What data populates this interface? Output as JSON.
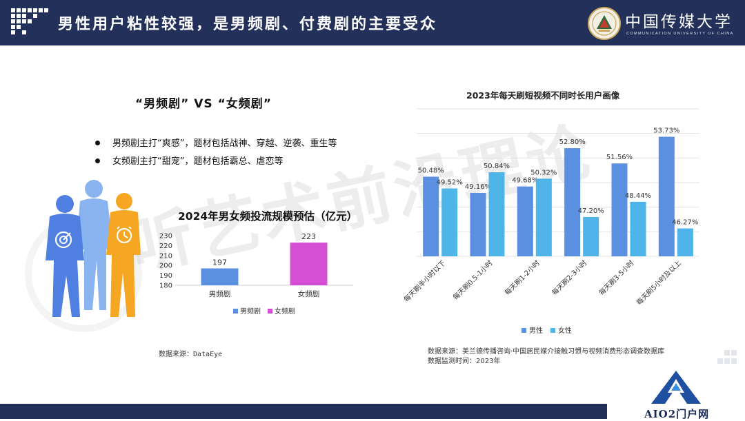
{
  "header": {
    "title": "男性用户粘性较强，是男频剧、付费剧的主要受众",
    "logo_name": "中国传媒大学",
    "logo_subtitle": "COMMUNICATION UNIVERSITY OF CHINA"
  },
  "watermark": "听艺术前沿理论",
  "left": {
    "vs_title": "“男频剧”   VS   “女频剧”",
    "bullets": [
      "男频剧主打“爽感”，题材包括战神、穿越、逆袭、重生等",
      "女频剧主打“甜宠”，题材包括霸总、虐恋等"
    ],
    "source": "数据来源：DataEye"
  },
  "right": {
    "source_line1": "数据来源：美兰德传播咨询·中国居民媒介接触习惯与视频消费形态调查数据库",
    "source_line2": "数据监测时间：2023年"
  },
  "badge": {
    "text": "AIO2门户网"
  },
  "colors": {
    "header_bg": "#23305a",
    "male_bar": "#5b8fe0",
    "female_bar": "#4fb5e8",
    "male_drama": "#5b8fe0",
    "female_drama": "#d44fd4"
  },
  "chart_data": [
    {
      "type": "bar",
      "title": "2024年男女频投流规模预估（亿元）",
      "categories": [
        "男频剧",
        "女频剧"
      ],
      "values": [
        197,
        223
      ],
      "ylim": [
        180,
        230
      ],
      "yticks": [
        180,
        190,
        200,
        210,
        220,
        230
      ],
      "legend": [
        "男频剧",
        "女频剧"
      ],
      "legend_position": "bottom",
      "grid": false
    },
    {
      "type": "bar",
      "title": "2023年每天刷短视频不同时长用户画像",
      "categories": [
        "每天刷半小时以下",
        "每天刷0.5-1小时",
        "每天刷1-2小时",
        "每天刷2-3小时",
        "每天刷3-5小时",
        "每天刷5小时及以上"
      ],
      "series": [
        {
          "name": "男性",
          "values": [
            50.48,
            49.16,
            49.68,
            52.8,
            51.56,
            53.73
          ],
          "labels": [
            "50.48%",
            "49.16%",
            "49.68%",
            "52.80%",
            "51.56%",
            "53.73%"
          ]
        },
        {
          "name": "女性",
          "values": [
            49.52,
            50.84,
            50.32,
            47.2,
            48.44,
            46.27
          ],
          "labels": [
            "49.52%",
            "50.84%",
            "50.32%",
            "47.20%",
            "48.44%",
            "46.27%"
          ]
        }
      ],
      "ylim": [
        44,
        56
      ],
      "legend_position": "bottom",
      "grid": true
    }
  ]
}
